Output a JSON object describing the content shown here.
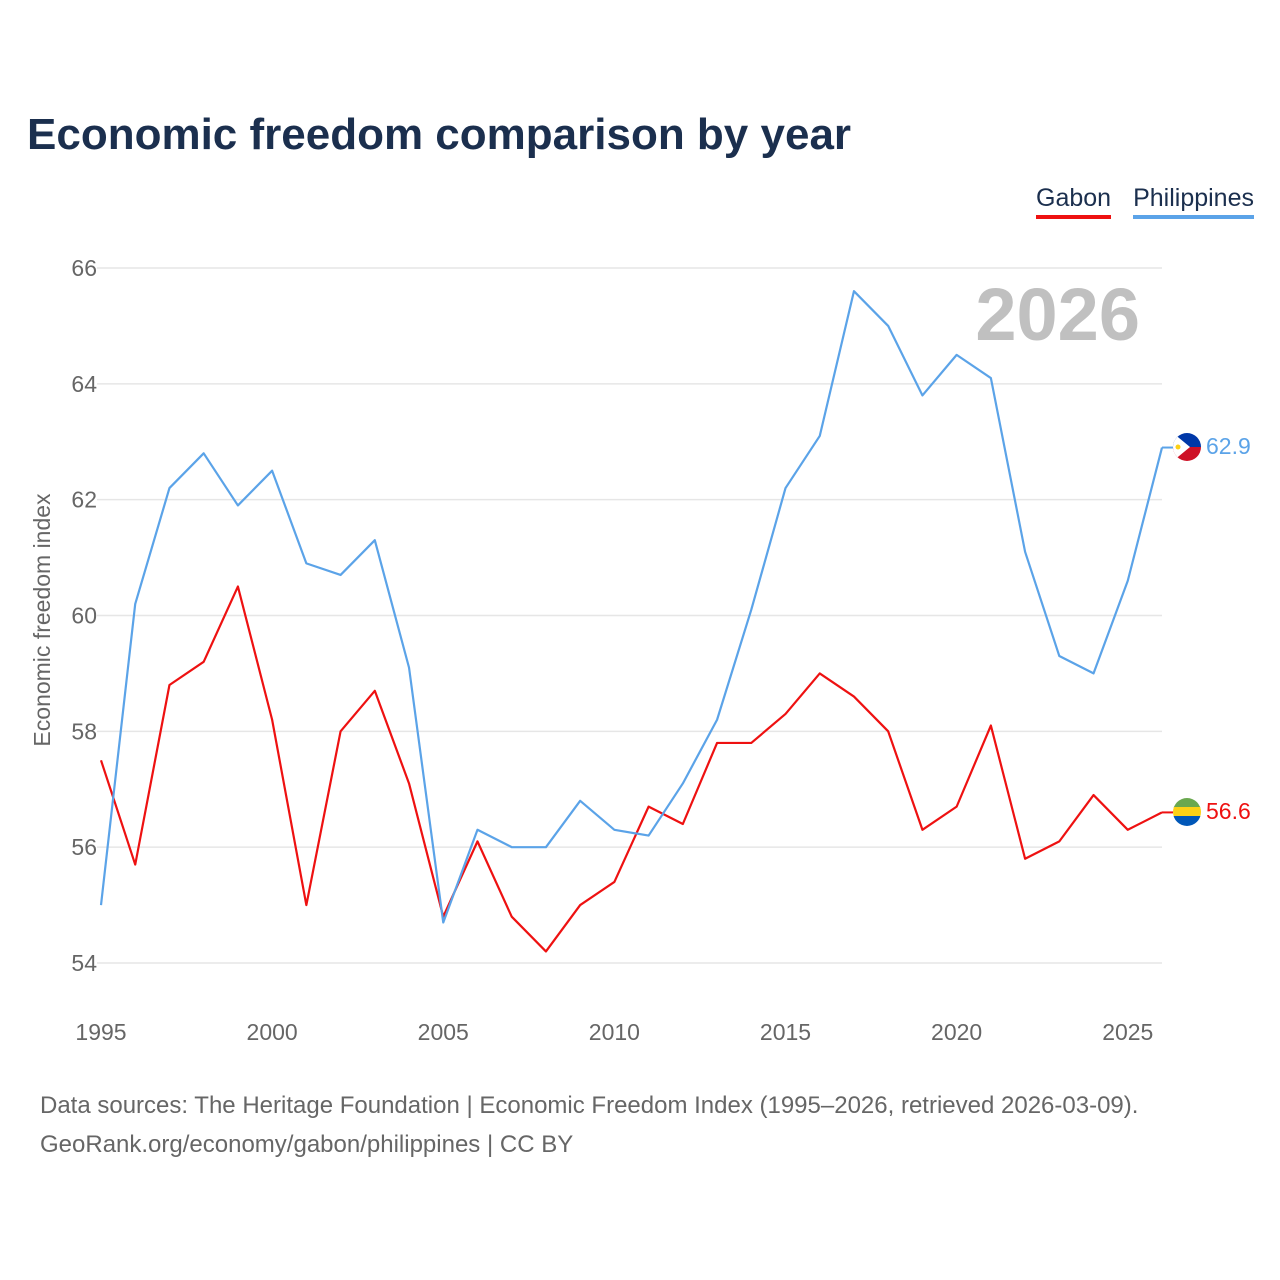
{
  "title": "Economic freedom comparison by year",
  "year_label": "2026",
  "footer": {
    "line1": "Data sources: The Heritage Foundation | Economic Freedom Index (1995–2026, retrieved 2026-03-09).",
    "line2": "GeoRank.org/economy/gabon/philippines | CC BY"
  },
  "chart_data": {
    "type": "line",
    "title": "Economic freedom comparison by year",
    "xlabel": "",
    "ylabel": "Economic freedom index",
    "xlim": [
      1995,
      2026
    ],
    "ylim": [
      54,
      66
    ],
    "yticks": [
      54,
      56,
      58,
      60,
      62,
      64,
      66
    ],
    "xticks": [
      1995,
      2000,
      2005,
      2010,
      2015,
      2020,
      2025
    ],
    "grid": true,
    "legend": "top-right",
    "x": [
      1995,
      1996,
      1997,
      1998,
      1999,
      2000,
      2001,
      2002,
      2003,
      2004,
      2005,
      2006,
      2007,
      2008,
      2009,
      2010,
      2011,
      2012,
      2013,
      2014,
      2015,
      2016,
      2017,
      2018,
      2019,
      2020,
      2021,
      2022,
      2023,
      2024,
      2025,
      2026
    ],
    "series": [
      {
        "name": "Gabon",
        "color": "#ee1111",
        "end_label": "56.6",
        "values": [
          57.5,
          55.7,
          58.8,
          59.2,
          60.5,
          58.2,
          55.0,
          58.0,
          58.7,
          57.1,
          54.8,
          56.1,
          54.8,
          54.2,
          55.0,
          55.4,
          56.7,
          56.4,
          57.8,
          57.8,
          58.3,
          59.0,
          58.6,
          58.0,
          56.3,
          56.7,
          58.1,
          55.8,
          56.1,
          56.9,
          56.3,
          56.6
        ]
      },
      {
        "name": "Philippines",
        "color": "#5ba3e8",
        "end_label": "62.9",
        "values": [
          55.0,
          60.2,
          62.2,
          62.8,
          61.9,
          62.5,
          60.9,
          60.7,
          61.3,
          59.1,
          54.7,
          56.3,
          56.0,
          56.0,
          56.8,
          56.3,
          56.2,
          57.1,
          58.2,
          60.1,
          62.2,
          63.1,
          65.6,
          65.0,
          63.8,
          64.5,
          64.1,
          61.1,
          59.3,
          59.0,
          60.6,
          62.9
        ]
      }
    ]
  }
}
